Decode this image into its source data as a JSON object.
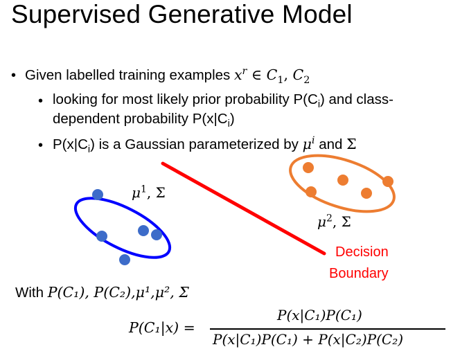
{
  "title": "Supervised Generative Model",
  "bullets": {
    "b1_text": "Given labelled training examples",
    "b1_math": "x",
    "b1_sup": "r",
    "b1_in": " ∈ ",
    "b1_c1": "C",
    "b1_sub1": "1",
    "b1_comma": ", ",
    "b1_c2": "C",
    "b1_sub2": "2",
    "b2_line1_a": "looking for most likely prior probability P(C",
    "b2_line1_sub": "i",
    "b2_line1_b": ") and class-",
    "b2_line2_a": "dependent probability P(x|C",
    "b2_line2_sub": "i",
    "b2_line2_b": ")",
    "b3_a": "P(x|C",
    "b3_sub": "i",
    "b3_b": ") is a Gaussian parameterized by ",
    "b3_mu": "μ",
    "b3_sup": "i",
    "b3_and": " and ",
    "b3_sigma": "Σ"
  },
  "figure": {
    "class1_label_mu": "μ",
    "class1_label_sup": "1",
    "class1_label_rest": ", Σ",
    "class2_label_mu": "μ",
    "class2_label_sup": "2",
    "class2_label_rest": ", Σ",
    "decision_label_1": "Decision",
    "decision_label_2": "Boundary",
    "colors": {
      "class1": "#2f5fc6",
      "class1_ellipse": "#0000ff",
      "class2": "#ed7d31",
      "boundary": "#ff0000"
    }
  },
  "with_line": {
    "prefix": "With ",
    "expr": "P(C₁), P(C₂),μ¹,μ², Σ"
  },
  "formula": {
    "lhs": "P(C₁|x) =",
    "numerator": "P(x|C₁)P(C₁)",
    "denominator": "P(x|C₁)P(C₁) + P(x|C₂)P(C₂)"
  }
}
